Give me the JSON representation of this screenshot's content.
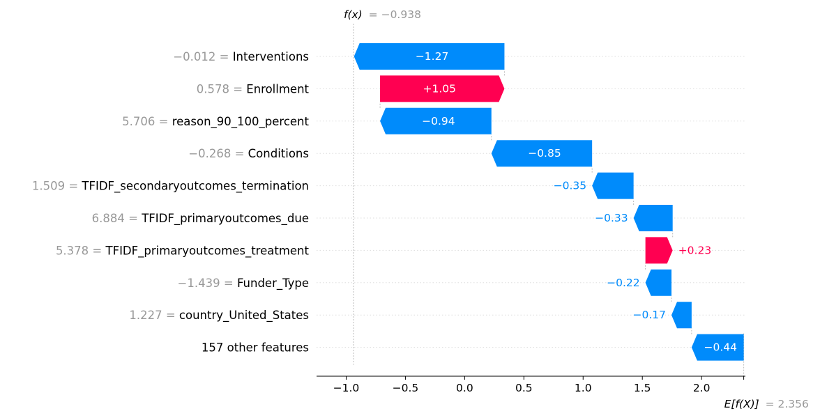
{
  "chart_data": {
    "type": "waterfall",
    "fx_label": "f(x)",
    "fx_value_text": "= −0.938",
    "fx_value": -0.938,
    "ex_label": "E[f(X)]",
    "ex_value_text": "= 2.356",
    "ex_value": 2.356,
    "xlim": [
      -1.25,
      2.37
    ],
    "x_ticks": [
      -1.0,
      -0.5,
      0.0,
      0.5,
      1.0,
      1.5,
      2.0
    ],
    "x_tick_labels": [
      "−1.0",
      "−0.5",
      "0.0",
      "0.5",
      "1.0",
      "1.5",
      "2.0"
    ],
    "colors": {
      "positive": "#ff0051",
      "negative": "#008bfb",
      "muted": "#999999"
    },
    "features": [
      {
        "value": "−0.012 =",
        "name": "Interventions",
        "contribution": -1.27,
        "label": "−1.27"
      },
      {
        "value": "0.578 =",
        "name": "Enrollment",
        "contribution": 1.05,
        "label": "+1.05"
      },
      {
        "value": "5.706 =",
        "name": "reason_90_100_percent",
        "contribution": -0.94,
        "label": "−0.94"
      },
      {
        "value": "−0.268 =",
        "name": "Conditions",
        "contribution": -0.85,
        "label": "−0.85"
      },
      {
        "value": "1.509 =",
        "name": "TFIDF_secondaryoutcomes_termination",
        "contribution": -0.35,
        "label": "−0.35"
      },
      {
        "value": "6.884 =",
        "name": "TFIDF_primaryoutcomes_due",
        "contribution": -0.33,
        "label": "−0.33"
      },
      {
        "value": "5.378 =",
        "name": "TFIDF_primaryoutcomes_treatment",
        "contribution": 0.23,
        "label": "+0.23"
      },
      {
        "value": "−1.439 =",
        "name": "Funder_Type",
        "contribution": -0.22,
        "label": "−0.22"
      },
      {
        "value": "1.227 =",
        "name": "country_United_States",
        "contribution": -0.17,
        "label": "−0.17"
      },
      {
        "value": "",
        "name": "157 other features",
        "contribution": -0.44,
        "label": "−0.44"
      }
    ]
  }
}
